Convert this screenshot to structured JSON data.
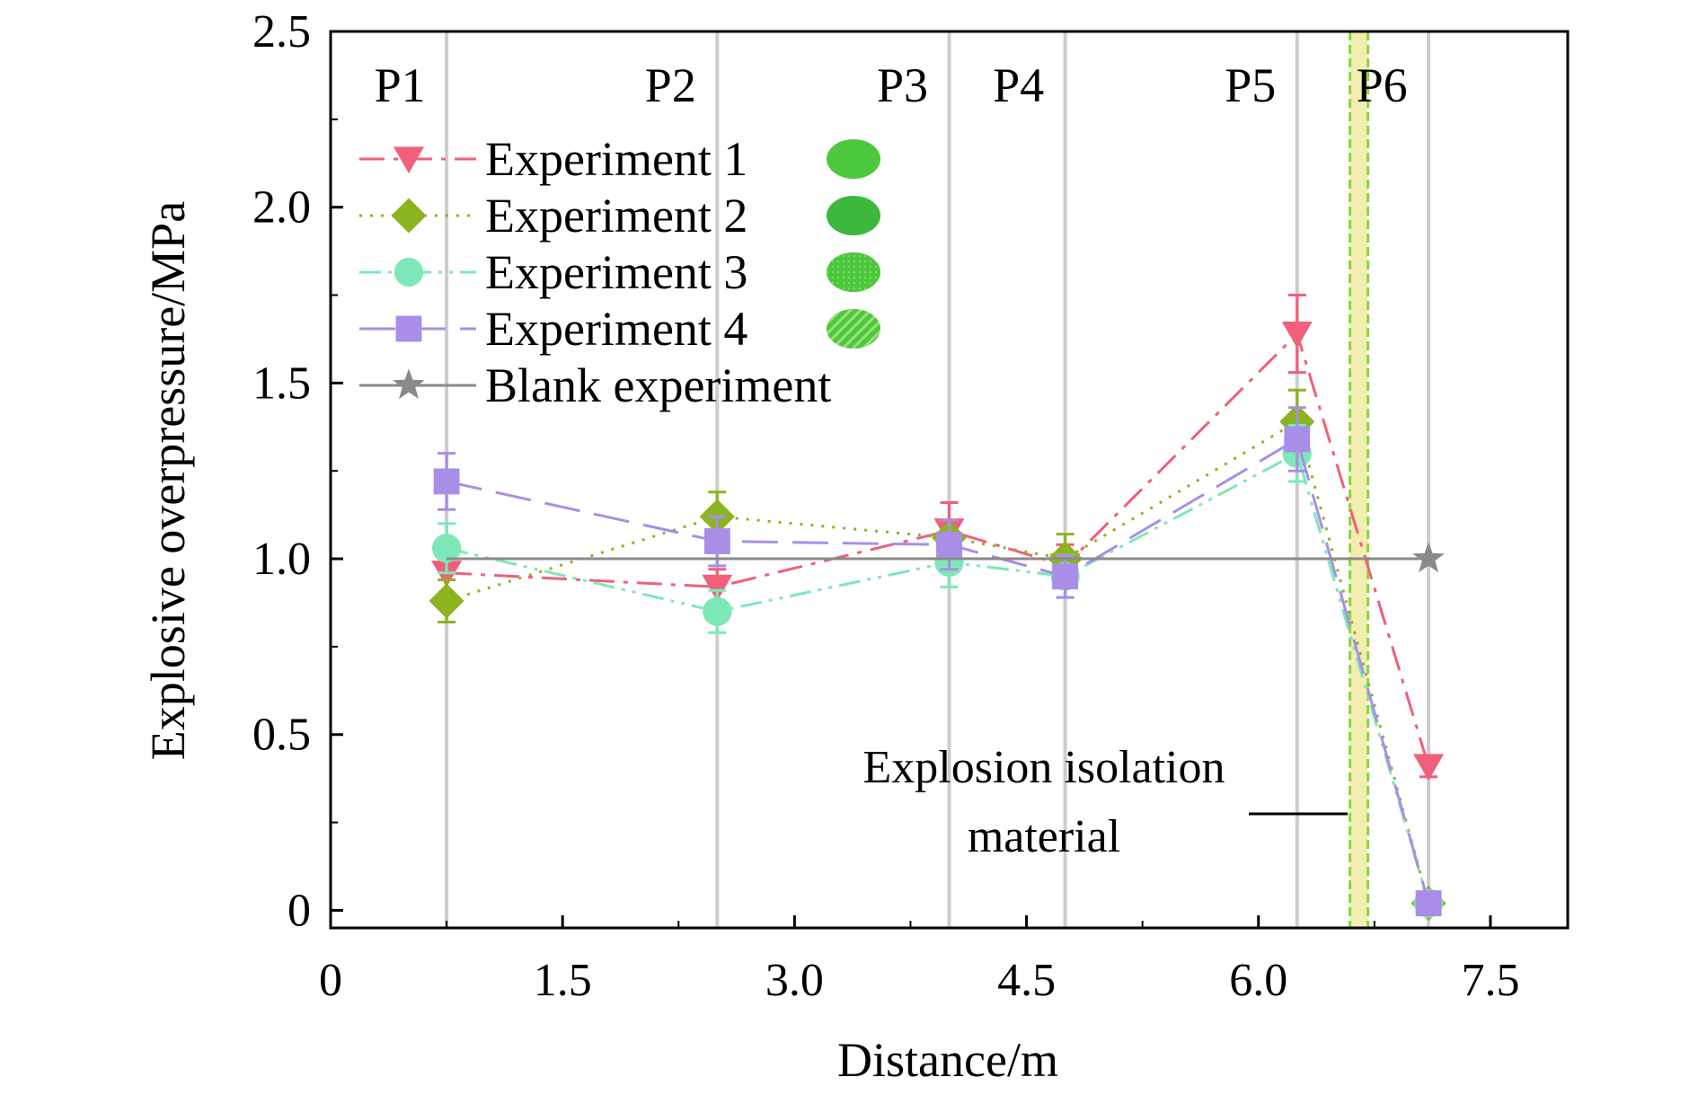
{
  "chart_data": {
    "type": "line",
    "xlabel": "Distance/m",
    "ylabel": "Explosive overpressure/MPa",
    "xlim": [
      0,
      8
    ],
    "ylim": [
      -0.05,
      2.5
    ],
    "xticks": [
      0,
      1.5,
      3.0,
      4.5,
      6.0,
      7.5
    ],
    "xtick_labels": [
      "0",
      "1.5",
      "3.0",
      "4.5",
      "6.0",
      "7.5"
    ],
    "yticks": [
      0,
      0.5,
      1.0,
      1.5,
      2.0,
      2.5
    ],
    "ytick_labels": [
      "0",
      "0.5",
      "1.0",
      "1.5",
      "2.0",
      "2.5"
    ],
    "grid": false,
    "legend_position": "top-left",
    "points": [
      {
        "label": "P1",
        "x": 0.75
      },
      {
        "label": "P2",
        "x": 2.5
      },
      {
        "label": "P3",
        "x": 4.0
      },
      {
        "label": "P4",
        "x": 4.75
      },
      {
        "label": "P5",
        "x": 6.25
      },
      {
        "label": "P6",
        "x": 7.1
      }
    ],
    "isolation_material": {
      "x": 6.65,
      "label_line1": "Explosion isolation",
      "label_line2": "material"
    },
    "series": [
      {
        "name": "Experiment 1",
        "color": "#f0607a",
        "marker": "triangle-down",
        "dash": "dashdot",
        "x": [
          0.75,
          2.5,
          4.0,
          4.75,
          6.25,
          7.1
        ],
        "y": [
          0.96,
          0.92,
          1.08,
          0.98,
          1.64,
          0.41
        ],
        "err": [
          0.06,
          0.05,
          0.08,
          0.06,
          0.11,
          0.03
        ]
      },
      {
        "name": "Experiment 2",
        "color": "#8cb41e",
        "marker": "diamond",
        "dash": "dotted",
        "x": [
          0.75,
          2.5,
          4.0,
          4.75,
          6.25,
          7.1
        ],
        "y": [
          0.88,
          1.12,
          1.06,
          1.0,
          1.39,
          0.02
        ],
        "err": [
          0.06,
          0.07,
          0.05,
          0.07,
          0.09,
          0.02
        ]
      },
      {
        "name": "Experiment 3",
        "color": "#7ee8b8",
        "marker": "circle",
        "dash": "dashdotdot",
        "x": [
          0.75,
          2.5,
          4.0,
          4.75,
          6.25,
          7.1
        ],
        "y": [
          1.03,
          0.85,
          0.99,
          0.95,
          1.3,
          0.02
        ],
        "err": [
          0.07,
          0.06,
          0.07,
          0.06,
          0.08,
          0.02
        ]
      },
      {
        "name": "Experiment 4",
        "color": "#a98ee8",
        "marker": "square",
        "dash": "longdash",
        "x": [
          0.75,
          2.5,
          4.0,
          4.75,
          6.25,
          7.1
        ],
        "y": [
          1.22,
          1.05,
          1.04,
          0.95,
          1.34,
          0.02
        ],
        "err": [
          0.08,
          0.07,
          0.07,
          0.06,
          0.09,
          0.02
        ]
      },
      {
        "name": "Blank experiment",
        "color": "#8a8a8a",
        "marker": "star",
        "dash": "solid",
        "x": [
          0.75,
          7.1
        ],
        "y": [
          1.0,
          1.0
        ],
        "err": [
          0,
          0
        ]
      }
    ]
  },
  "colors": {
    "vertical_lines": "#cccccc",
    "isolation_fill": "#f2eeb0",
    "isolation_border": "#8cd43c",
    "legend_patch": "#4cc83c"
  }
}
